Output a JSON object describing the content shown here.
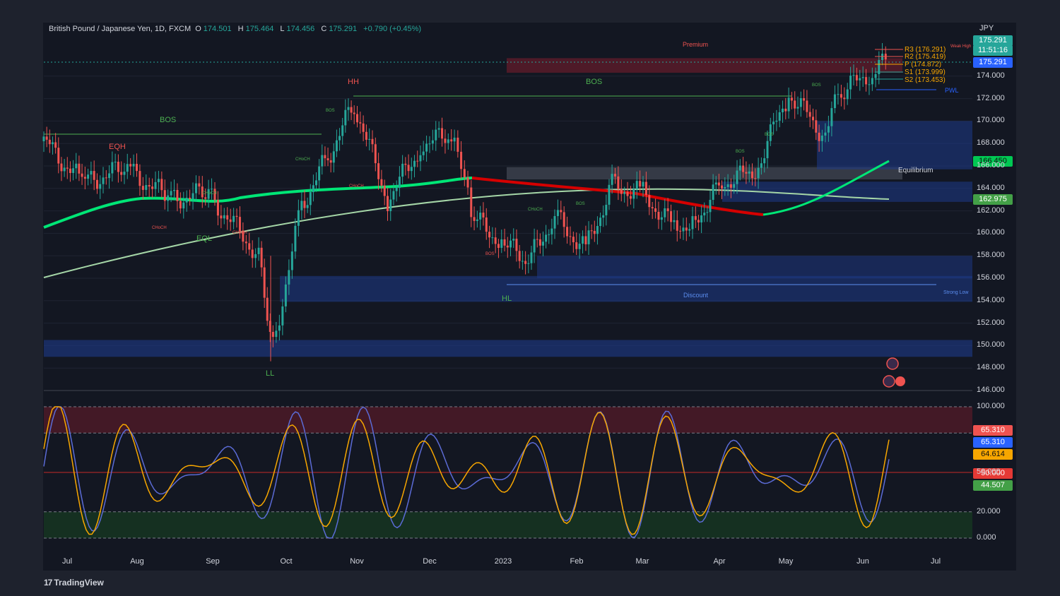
{
  "header": {
    "symbol": "British Pound / Japanese Yen, 1D, FXCM",
    "open_label": "O",
    "open": "174.501",
    "high_label": "H",
    "high": "175.464",
    "low_label": "L",
    "low": "174.456",
    "close_label": "C",
    "close": "175.291",
    "change": "+0.790 (+0.45%)"
  },
  "currency": "JPY",
  "price_boxes": {
    "last": "175.291",
    "countdown": "11:51:16",
    "current": "175.291",
    "ma_fast": "166.450",
    "ma_slow": "162.975"
  },
  "osc_boxes": {
    "a": "65.310",
    "b": "65.310",
    "c": "64.614",
    "mid": "50.000",
    "d": "44.507"
  },
  "colors": {
    "up": "#26a69a",
    "down": "#ef5350",
    "ma_fast": "#00e676",
    "ma_slow_green": "#a5d6a7",
    "bear_ma": "#d50000",
    "zone_blue": "#1e3a8a",
    "premium_zone": "#7f1d2d",
    "osc_k": "#f7a600",
    "osc_d": "#5b6bd6",
    "last_box": "#26a69a",
    "current_box": "#2962ff"
  },
  "annotations": {
    "bos_left": "BOS",
    "bos_top": "BOS",
    "eqh": "EQH",
    "hh": "HH",
    "eql": "EQL",
    "ll": "LL",
    "hl": "HL",
    "premium": "Premium",
    "equilibrium": "Equilibrium",
    "discount": "Discount",
    "strong_low": "Strong Low",
    "weak_high": "Weak High",
    "pwl": "PWL",
    "choch": "CHoCH",
    "bos_small": "BOS"
  },
  "pivots": {
    "r3": "R3 (176.291)",
    "r2": "R2 (175.419)",
    "p": "P (174.872)",
    "s1": "S1 (173.999)",
    "s2": "S2 (173.453)"
  },
  "brand": {
    "logo_mark": "17",
    "name": "TradingView"
  },
  "chart_data": [
    {
      "type": "line",
      "title": "British Pound / Japanese Yen, 1D, FXCM",
      "xlabel": "",
      "ylabel": "",
      "x_ticks": [
        "Jul",
        "Aug",
        "Sep",
        "Oct",
        "Nov",
        "Dec",
        "2023",
        "Feb",
        "Mar",
        "Apr",
        "May",
        "Jun",
        "Jul"
      ],
      "y_ticks": [
        "146.000",
        "148.000",
        "150.000",
        "152.000",
        "154.000",
        "156.000",
        "158.000",
        "160.000",
        "162.000",
        "164.000",
        "166.000",
        "168.000",
        "170.000",
        "172.000",
        "174.000"
      ],
      "ylim": [
        146,
        177
      ],
      "x": [
        "2022-06-24",
        "2022-07-10",
        "2022-07-29",
        "2022-08-15",
        "2022-09-01",
        "2022-09-22",
        "2022-09-28",
        "2022-10-10",
        "2022-10-21",
        "2022-11-01",
        "2022-11-15",
        "2022-11-30",
        "2022-12-13",
        "2022-12-20",
        "2023-01-03",
        "2023-01-13",
        "2023-01-24",
        "2023-02-06",
        "2023-02-17",
        "2023-03-02",
        "2023-03-15",
        "2023-03-24",
        "2023-04-04",
        "2023-04-18",
        "2023-05-02",
        "2023-05-16",
        "2023-05-24",
        "2023-06-06",
        "2023-06-13"
      ],
      "series": [
        {
          "values": [
            168.2,
            164.5,
            165.8,
            163.1,
            163.5,
            158.0,
            150.0,
            162.5,
            166.8,
            171.5,
            163.0,
            168.0,
            168.8,
            161.5,
            159.0,
            157.5,
            161.5,
            158.5,
            164.3,
            163.5,
            160.5,
            161.2,
            164.5,
            165.5,
            172.5,
            169.0,
            172.5,
            174.5,
            175.3
          ]
        }
      ]
    },
    {
      "type": "line",
      "title": "",
      "y_ticks": [
        "0.000",
        "20.000",
        "50.000",
        "100.000"
      ],
      "ylim": [
        0,
        100
      ],
      "levels": [
        0,
        20,
        50,
        80,
        100
      ],
      "last_values": {
        "k": 64.614,
        "d": 44.507
      }
    }
  ]
}
